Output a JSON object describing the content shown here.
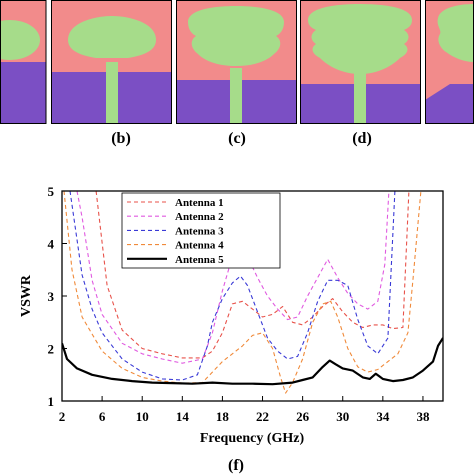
{
  "panel_labels": [
    "(b)",
    "(c)",
    "(d)",
    "(f)"
  ],
  "colors": {
    "substrate": "#f28b8b",
    "ground": "#7b4fc4",
    "patch": "#a6dc8a",
    "frame": "#000000"
  },
  "chart_data": {
    "type": "line",
    "title": "",
    "xlabel": "Frequency (GHz)",
    "ylabel": "VSWR",
    "xlim": [
      2,
      40
    ],
    "ylim": [
      1,
      5
    ],
    "xticks": [
      2,
      6,
      10,
      14,
      18,
      22,
      26,
      30,
      34,
      38
    ],
    "yticks": [
      1,
      2,
      3,
      4,
      5
    ],
    "grid": false,
    "legend_position": "top-center",
    "series": [
      {
        "name": "Antenna 1",
        "color": "#e8524a",
        "style": "dashed",
        "x": [
          5.4,
          6.5,
          8,
          10,
          12,
          14,
          16,
          17,
          18,
          19,
          20,
          21,
          22,
          23,
          24,
          25,
          26,
          27,
          28,
          29,
          30,
          31,
          32,
          33,
          34,
          35,
          36,
          36.6
        ],
        "y": [
          5.0,
          3.2,
          2.35,
          2.0,
          1.9,
          1.82,
          1.82,
          1.95,
          2.3,
          2.85,
          2.9,
          2.75,
          2.6,
          2.65,
          2.8,
          2.5,
          2.45,
          2.6,
          2.8,
          2.95,
          2.7,
          2.5,
          2.4,
          2.45,
          2.45,
          2.38,
          2.4,
          5.0
        ]
      },
      {
        "name": "Antenna 2",
        "color": "#e05ae0",
        "style": "dashed",
        "x": [
          3.5,
          4,
          5,
          6,
          8,
          10,
          12,
          14,
          16,
          17,
          18,
          19,
          19.6,
          20.5,
          21.5,
          22.5,
          23.5,
          24.5,
          25.5,
          26.5,
          27.5,
          28.5,
          29.5,
          30.5,
          31.5,
          32.5,
          33.5,
          34.2,
          34.6
        ],
        "y": [
          5.0,
          4.5,
          3.3,
          2.65,
          2.1,
          1.9,
          1.8,
          1.72,
          1.8,
          2.3,
          3.1,
          3.75,
          3.98,
          3.75,
          3.35,
          3.0,
          2.75,
          2.55,
          2.6,
          3.0,
          3.35,
          3.7,
          3.35,
          3.05,
          2.85,
          2.75,
          2.9,
          3.6,
          5.0
        ]
      },
      {
        "name": "Antenna 3",
        "color": "#3a3ad6",
        "style": "dashed",
        "x": [
          2.8,
          4,
          5,
          6,
          8,
          10,
          12,
          14,
          15.5,
          16.5,
          17,
          18,
          19,
          19.8,
          20.5,
          21.5,
          22.5,
          23.5,
          24.5,
          25.5,
          26.5,
          27.5,
          28.5,
          29.5,
          30.5,
          31.5,
          32.5,
          33.5,
          34.5,
          35.2
        ],
        "y": [
          5.0,
          3.4,
          2.75,
          2.3,
          1.8,
          1.55,
          1.42,
          1.4,
          1.5,
          2.05,
          2.5,
          2.95,
          3.25,
          3.38,
          3.2,
          2.7,
          2.2,
          1.95,
          1.8,
          1.85,
          2.3,
          2.9,
          3.3,
          3.3,
          3.2,
          2.55,
          2.05,
          1.9,
          2.2,
          5.0
        ]
      },
      {
        "name": "Antenna 4",
        "color": "#f08a3a",
        "style": "dashed",
        "x": [
          2.2,
          3,
          4,
          6,
          8,
          10,
          12,
          14,
          16,
          17,
          18,
          19,
          20,
          21,
          22,
          23,
          23.8,
          24.3,
          25,
          26,
          27,
          28,
          28.8,
          29.5,
          30.5,
          31.5,
          32.5,
          33.5,
          34.5,
          35.5,
          36.5,
          37,
          37.8
        ],
        "y": [
          5.0,
          3.5,
          2.6,
          1.95,
          1.62,
          1.45,
          1.38,
          1.34,
          1.35,
          1.55,
          1.75,
          1.9,
          2.05,
          2.25,
          2.3,
          2.0,
          1.45,
          1.15,
          1.35,
          1.8,
          2.5,
          2.85,
          2.9,
          2.6,
          2.0,
          1.65,
          1.55,
          1.6,
          1.75,
          1.9,
          2.3,
          3.3,
          5.0
        ]
      },
      {
        "name": "Antenna 5",
        "color": "#000000",
        "style": "solid",
        "x": [
          2,
          2.5,
          3.5,
          5,
          7,
          9,
          11,
          13,
          15,
          17,
          19,
          21,
          23,
          25,
          26,
          27,
          28,
          28.7,
          29.3,
          30,
          31,
          32,
          32.7,
          33.3,
          34,
          35,
          36,
          37,
          38,
          39,
          39.5,
          40
        ],
        "y": [
          2.1,
          1.8,
          1.62,
          1.5,
          1.42,
          1.38,
          1.35,
          1.34,
          1.33,
          1.35,
          1.33,
          1.33,
          1.32,
          1.35,
          1.4,
          1.45,
          1.65,
          1.77,
          1.7,
          1.62,
          1.58,
          1.45,
          1.42,
          1.52,
          1.42,
          1.38,
          1.4,
          1.45,
          1.58,
          1.75,
          2.05,
          2.2
        ]
      }
    ]
  }
}
